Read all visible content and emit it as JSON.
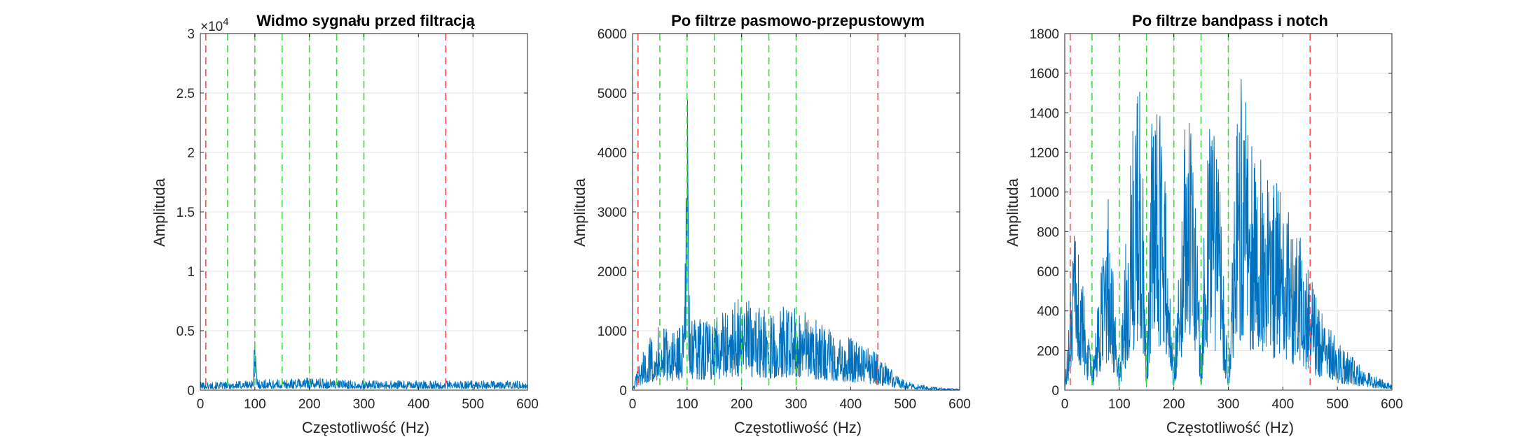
{
  "chart_data": [
    {
      "type": "line",
      "title": "Widmo sygnału przed filtracją",
      "xlabel": "Częstotliwość (Hz)",
      "ylabel": "Amplituda",
      "xlim": [
        0,
        600
      ],
      "ylim": [
        0,
        30000
      ],
      "x_ticks": [
        "0",
        "100",
        "200",
        "300",
        "400",
        "500",
        "600"
      ],
      "y_ticks": [
        "0",
        "0.5",
        "1",
        "1.5",
        "2",
        "2.5",
        "3"
      ],
      "y_multiplier": "×10",
      "y_multiplier_exp": "4",
      "grid": true,
      "series_color": "#0072BD",
      "red_lines_hz": [
        10,
        450
      ],
      "green_lines_hz": [
        50,
        100,
        150,
        200,
        250,
        300
      ],
      "series": [
        {
          "x": [
            0,
            50,
            95,
            98,
            100,
            102,
            105,
            150,
            200,
            250,
            300,
            350,
            400,
            450,
            500,
            550,
            600
          ],
          "y": [
            700,
            700,
            900,
            2500,
            6000,
            2500,
            900,
            900,
            1100,
            900,
            800,
            800,
            800,
            800,
            800,
            800,
            800
          ]
        }
      ]
    },
    {
      "type": "line",
      "title": "Po filtrze pasmowo-przepustowym",
      "xlabel": "Częstotliwość (Hz)",
      "ylabel": "Amplituda",
      "xlim": [
        0,
        600
      ],
      "ylim": [
        0,
        6000
      ],
      "x_ticks": [
        "0",
        "100",
        "200",
        "300",
        "400",
        "500",
        "600"
      ],
      "y_ticks": [
        "0",
        "1000",
        "2000",
        "3000",
        "4000",
        "5000",
        "6000"
      ],
      "grid": true,
      "series_color": "#0072BD",
      "red_lines_hz": [
        10,
        450
      ],
      "green_lines_hz": [
        50,
        100,
        150,
        200,
        250,
        300
      ],
      "series": [
        {
          "x": [
            0,
            10,
            30,
            50,
            80,
            95,
            100,
            105,
            150,
            200,
            250,
            300,
            350,
            400,
            450,
            480,
            500,
            550,
            600
          ],
          "y": [
            0,
            400,
            900,
            1100,
            1000,
            1200,
            5800,
            1200,
            1200,
            1600,
            1300,
            1500,
            1100,
            900,
            600,
            300,
            150,
            60,
            20
          ]
        }
      ]
    },
    {
      "type": "line",
      "title": "Po filtrze bandpass i notch",
      "xlabel": "Częstotliwość (Hz)",
      "ylabel": "Amplituda",
      "xlim": [
        0,
        600
      ],
      "ylim": [
        0,
        1800
      ],
      "x_ticks": [
        "0",
        "100",
        "200",
        "300",
        "400",
        "500",
        "600"
      ],
      "y_ticks": [
        "0",
        "200",
        "400",
        "600",
        "800",
        "1000",
        "1200",
        "1400",
        "1600",
        "1800"
      ],
      "grid": true,
      "series_color": "#0072BD",
      "red_lines_hz": [
        10,
        450
      ],
      "green_lines_hz": [
        50,
        100,
        150,
        200,
        250,
        300
      ],
      "series": [
        {
          "x": [
            0,
            10,
            20,
            50,
            80,
            100,
            120,
            140,
            150,
            160,
            180,
            200,
            220,
            240,
            250,
            260,
            280,
            300,
            320,
            350,
            400,
            430,
            450,
            470,
            500,
            550,
            600
          ],
          "y": [
            0,
            500,
            900,
            100,
            1000,
            100,
            1200,
            1650,
            100,
            1400,
            1400,
            100,
            1500,
            1300,
            100,
            1400,
            1300,
            100,
            1700,
            1200,
            1000,
            800,
            600,
            400,
            250,
            100,
            30
          ]
        }
      ]
    }
  ]
}
